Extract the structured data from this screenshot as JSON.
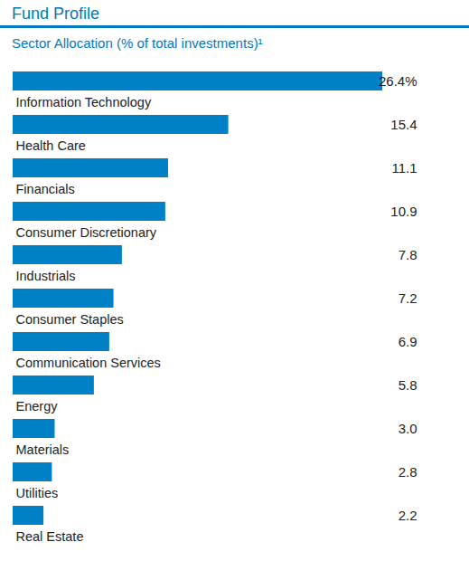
{
  "chart_data": {
    "type": "bar",
    "title": "Fund Profile",
    "subtitle": "Sector Allocation (% of total investments)¹",
    "orientation": "horizontal",
    "categories": [
      "Information Technology",
      "Health Care",
      "Financials",
      "Consumer Discretionary",
      "Industrials",
      "Consumer Staples",
      "Communication Services",
      "Energy",
      "Materials",
      "Utilities",
      "Real Estate"
    ],
    "values": [
      26.4,
      15.4,
      11.1,
      10.9,
      7.8,
      7.2,
      6.9,
      5.8,
      3.0,
      2.8,
      2.2
    ],
    "value_labels": [
      "26.4%",
      "15.4",
      "11.1",
      "10.9",
      "7.8",
      "7.2",
      "6.9",
      "5.8",
      "3.0",
      "2.8",
      "2.2"
    ],
    "data_labels": true,
    "color": "#0080c6",
    "xlim": [
      0,
      26.4
    ],
    "tick_labels": false,
    "grid": false
  }
}
